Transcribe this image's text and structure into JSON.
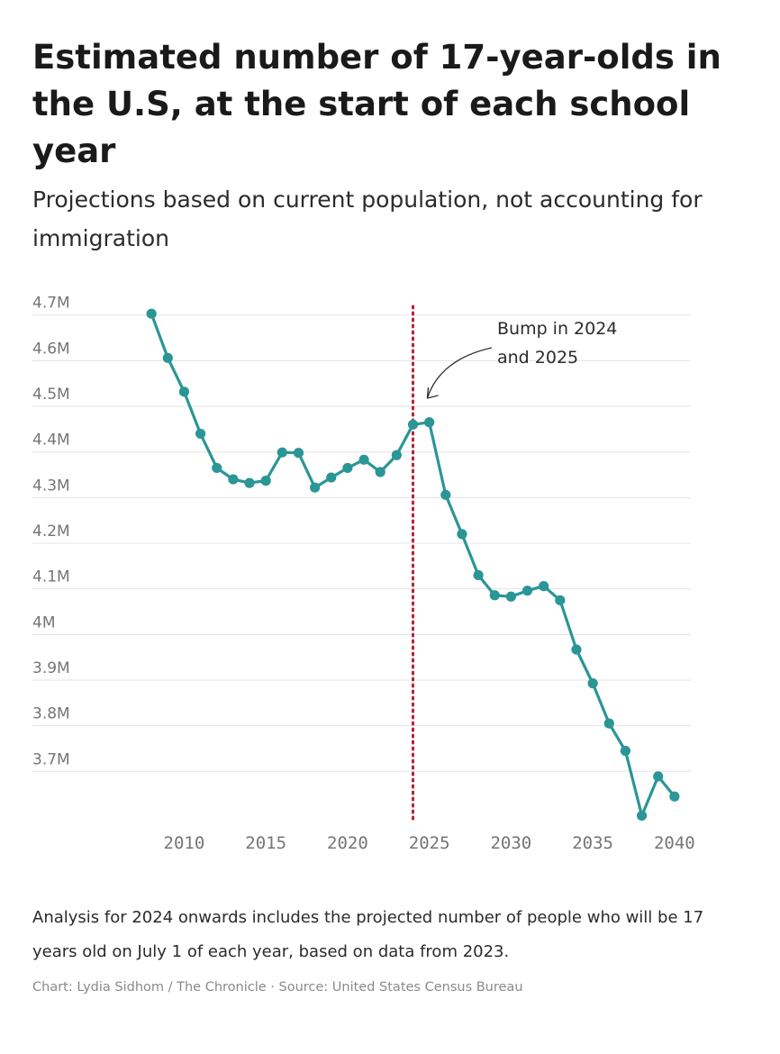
{
  "header": {
    "title": "Estimated number of 17-year-olds in the U.S, at the start of each school year",
    "subtitle": "Projections based on current population, not accounting for immigration"
  },
  "footer": {
    "note": "Analysis for 2024 onwards includes the projected number of people who will be 17 years old on July 1 of each year, based on data from 2023.",
    "credit": "Chart: Lydia Sidhom / The Chronicle · Source: United States Census Bureau"
  },
  "colors": {
    "line": "#2a9696",
    "reference_line": "#b3243a",
    "grid": "#e3e3e3",
    "annotation_arrow": "#333333"
  },
  "chart_data": {
    "type": "line",
    "title": "Estimated number of 17-year-olds in the U.S, at the start of each school year",
    "subtitle": "Projections based on current population, not accounting for immigration",
    "xlabel": "",
    "ylabel": "",
    "x_ticks": [
      2010,
      2015,
      2020,
      2025,
      2030,
      2035,
      2040
    ],
    "y_ticks": [
      {
        "value": 4.7,
        "label": "4.7M"
      },
      {
        "value": 4.6,
        "label": "4.6M"
      },
      {
        "value": 4.5,
        "label": "4.5M"
      },
      {
        "value": 4.4,
        "label": "4.4M"
      },
      {
        "value": 4.3,
        "label": "4.3M"
      },
      {
        "value": 4.2,
        "label": "4.2M"
      },
      {
        "value": 4.1,
        "label": "4.1M"
      },
      {
        "value": 4.0,
        "label": "4M"
      },
      {
        "value": 3.9,
        "label": "3.9M"
      },
      {
        "value": 3.8,
        "label": "3.8M"
      },
      {
        "value": 3.7,
        "label": "3.7M"
      }
    ],
    "xlim": [
      2007,
      2041
    ],
    "ylim": [
      3.59,
      4.735
    ],
    "grid": true,
    "series": [
      {
        "x": [
          2008,
          2009,
          2010,
          2011,
          2012,
          2013,
          2014,
          2015,
          2016,
          2017,
          2018,
          2019,
          2020,
          2021,
          2022,
          2023,
          2024,
          2025,
          2026,
          2027,
          2028,
          2029,
          2030,
          2031,
          2032,
          2033,
          2034,
          2035,
          2036,
          2037,
          2038,
          2039,
          2040
        ],
        "y": [
          4.703,
          4.606,
          4.532,
          4.44,
          4.365,
          4.34,
          4.332,
          4.337,
          4.399,
          4.398,
          4.322,
          4.344,
          4.365,
          4.383,
          4.356,
          4.393,
          4.46,
          4.465,
          4.306,
          4.22,
          4.13,
          4.086,
          4.083,
          4.096,
          4.106,
          4.075,
          3.967,
          3.893,
          3.805,
          3.745,
          3.603,
          3.689,
          3.645
        ]
      }
    ],
    "reference_line": {
      "x": 2024
    },
    "annotation": {
      "lines": [
        "Bump in 2024",
        "and 2025"
      ],
      "points_to_x": 2024
    }
  }
}
